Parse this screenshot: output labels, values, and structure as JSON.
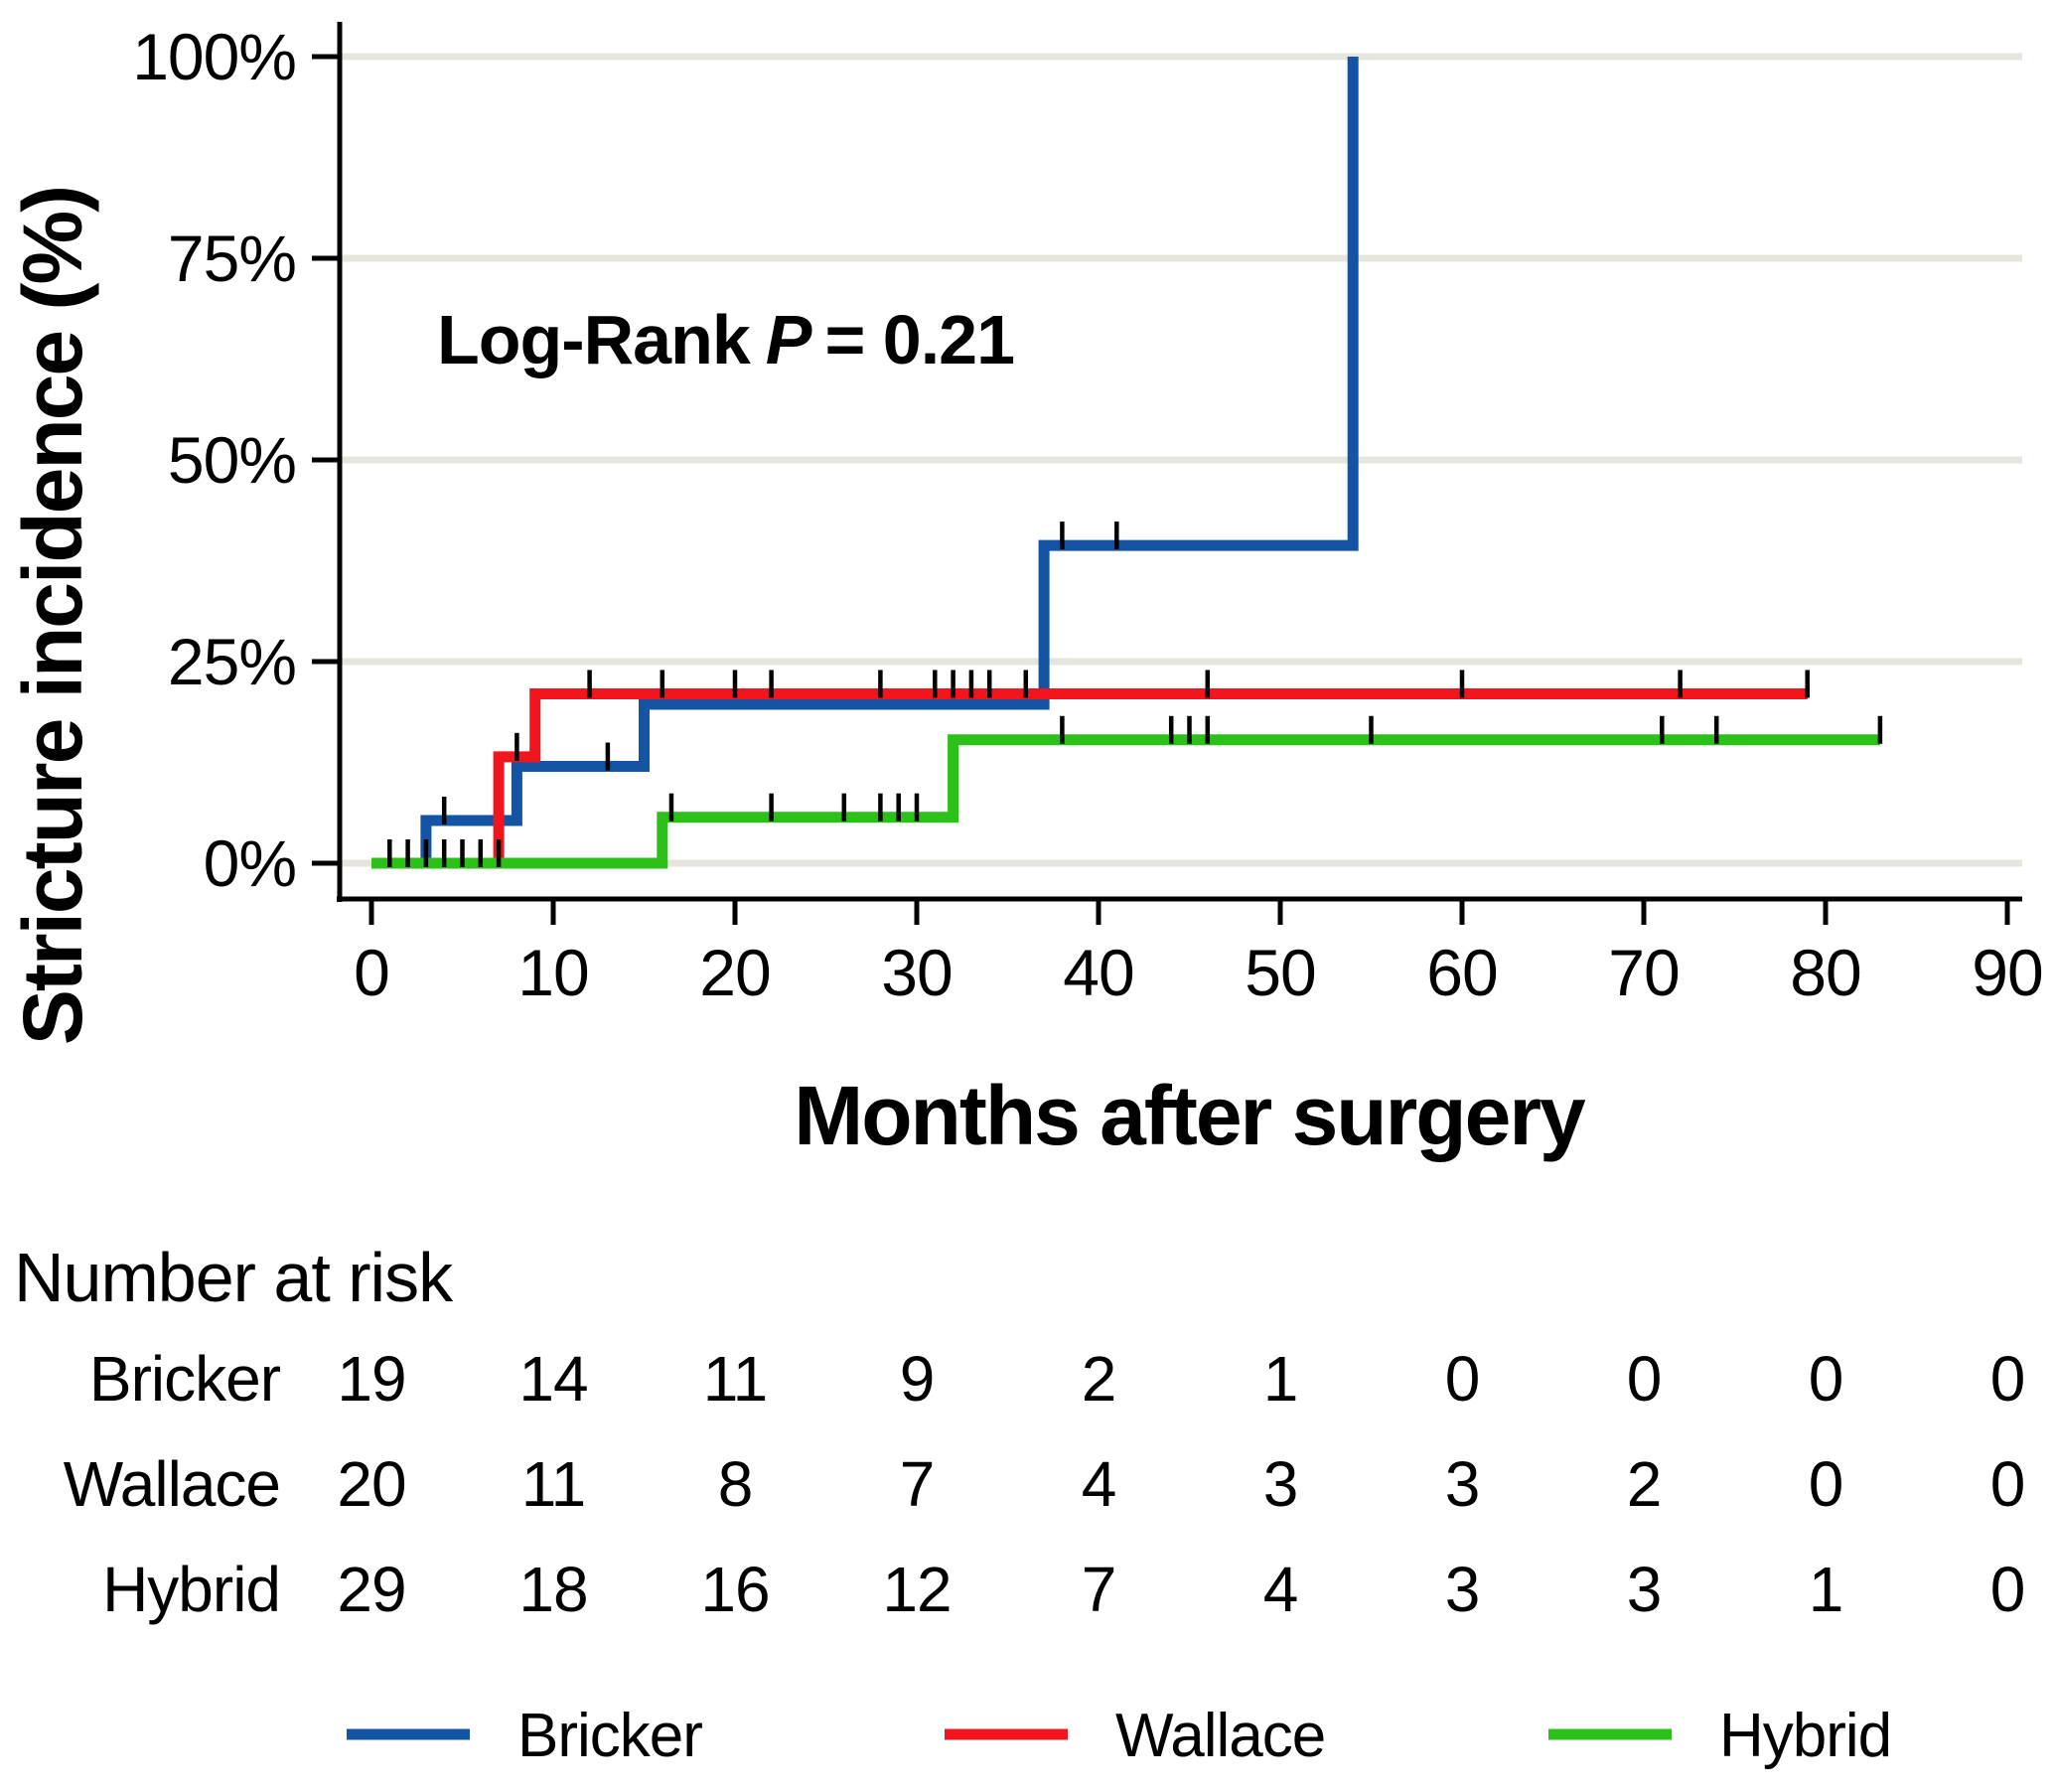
{
  "figure": {
    "background": "#ffffff",
    "axis_color": "#000000",
    "grid_color": "#e5e5de"
  },
  "chart_data": {
    "type": "line",
    "subtype": "kaplan-meier-step-incidence",
    "title": "",
    "xlabel": "Months after surgery",
    "ylabel": "Stricture incidence (%)",
    "annotation": {
      "prefix": "Log-Rank",
      "stat": "P",
      "rest": "= 0.21",
      "p_value": 0.21
    },
    "xlim": [
      0,
      90
    ],
    "ylim": [
      0,
      100
    ],
    "xticks": [
      0,
      10,
      20,
      30,
      40,
      50,
      60,
      70,
      80,
      90
    ],
    "yticks": [
      {
        "value": 0,
        "label": "0%"
      },
      {
        "value": 25,
        "label": "25%"
      },
      {
        "value": 50,
        "label": "50%"
      },
      {
        "value": 75,
        "label": "75%"
      },
      {
        "value": 100,
        "label": "100%"
      }
    ],
    "grid": "horizontal",
    "legend_position": "bottom",
    "series": [
      {
        "name": "Bricker",
        "color": "#1355a4",
        "steps": [
          [
            0,
            0
          ],
          [
            3,
            5.3
          ],
          [
            8,
            12.0
          ],
          [
            15,
            19.7
          ],
          [
            37,
            39.4
          ],
          [
            54,
            100
          ]
        ],
        "end": 54,
        "censors": [
          [
            1,
            0
          ],
          [
            2,
            0
          ],
          [
            4,
            5.3
          ],
          [
            13,
            12.0
          ],
          [
            38,
            39.4
          ],
          [
            41,
            39.4
          ]
        ]
      },
      {
        "name": "Wallace",
        "color": "#f2151d",
        "steps": [
          [
            0,
            0
          ],
          [
            7,
            13.2
          ],
          [
            9,
            21.0
          ]
        ],
        "end": 79,
        "censors": [
          [
            8,
            13.2
          ],
          [
            12,
            21.0
          ],
          [
            16,
            21.0
          ],
          [
            20,
            21.0
          ],
          [
            22,
            21.0
          ],
          [
            28,
            21.0
          ],
          [
            31,
            21.0
          ],
          [
            32,
            21.0
          ],
          [
            33,
            21.0
          ],
          [
            34,
            21.0
          ],
          [
            36,
            21.0
          ],
          [
            46,
            21.0
          ],
          [
            60,
            21.0
          ],
          [
            72,
            21.0
          ],
          [
            79,
            21.0
          ]
        ]
      },
      {
        "name": "Hybrid",
        "color": "#2bc119",
        "steps": [
          [
            0,
            0
          ],
          [
            16,
            5.7
          ],
          [
            32,
            15.3
          ]
        ],
        "end": 83,
        "censors": [
          [
            3,
            0
          ],
          [
            4,
            0
          ],
          [
            5,
            0
          ],
          [
            6,
            0
          ],
          [
            7,
            0
          ],
          [
            16.5,
            5.7
          ],
          [
            22,
            5.7
          ],
          [
            26,
            5.7
          ],
          [
            28,
            5.7
          ],
          [
            29,
            5.7
          ],
          [
            30,
            5.7
          ],
          [
            38,
            15.3
          ],
          [
            44,
            15.3
          ],
          [
            45,
            15.3
          ],
          [
            46,
            15.3
          ],
          [
            55,
            15.3
          ],
          [
            71,
            15.3
          ],
          [
            74,
            15.3
          ],
          [
            83,
            15.3
          ]
        ]
      }
    ],
    "risk_table": {
      "header": "Number at risk",
      "times": [
        0,
        10,
        20,
        30,
        40,
        50,
        60,
        70,
        80,
        90
      ],
      "rows": [
        {
          "name": "Bricker",
          "values": [
            19,
            14,
            11,
            9,
            2,
            1,
            0,
            0,
            0,
            0
          ]
        },
        {
          "name": "Wallace",
          "values": [
            20,
            11,
            8,
            7,
            4,
            3,
            3,
            2,
            0,
            0
          ]
        },
        {
          "name": "Hybrid",
          "values": [
            29,
            18,
            16,
            12,
            7,
            4,
            3,
            3,
            1,
            0
          ]
        }
      ]
    },
    "legend": [
      "Bricker",
      "Wallace",
      "Hybrid"
    ]
  }
}
